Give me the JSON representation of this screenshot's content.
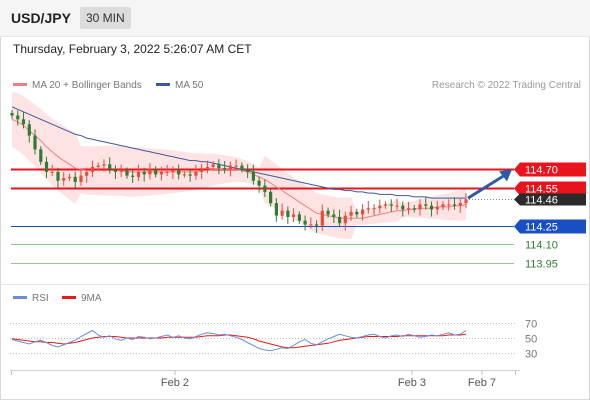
{
  "header": {
    "symbol": "USD/JPY",
    "timeframe": "30 MIN"
  },
  "datetime": "Thursday, February 3, 2022 5:26:07 AM CET",
  "legend": {
    "ma20": "MA 20 + Bollinger Bands",
    "ma50": "MA 50",
    "rsi": "RSI",
    "ma9": "9MA"
  },
  "copyright": "Research © 2022 Trading Central",
  "colors": {
    "ma20": "#f08080",
    "ma50": "#3c5a9a",
    "bollinger_fill": "#fde0e0",
    "bull": "#e74c3c",
    "bear": "#2e7d32",
    "resistance": "#e8131d",
    "support_blue": "#1a4fc4",
    "support_green": "#8fc98f",
    "arrow": "#2b5aa8",
    "rsi": "#6a8fd6",
    "rsi_ma": "#e21b1b",
    "last_price_bg": "#2b2b2b"
  },
  "chart_data": [
    {
      "type": "line",
      "title": "USD/JPY 30 MIN",
      "x_ticks": [
        "Feb 2",
        "Feb 3",
        "Feb 7"
      ],
      "ylim": [
        113.8,
        115.35
      ],
      "levels": [
        {
          "value": 114.7,
          "label": "114.70",
          "kind": "resistance"
        },
        {
          "value": 114.55,
          "label": "114.55",
          "kind": "resistance"
        },
        {
          "value": 114.25,
          "label": "114.25",
          "kind": "support"
        },
        {
          "value": 114.1,
          "label": "114.10",
          "kind": "support"
        },
        {
          "value": 113.95,
          "label": "113.95",
          "kind": "support"
        }
      ],
      "last_price": {
        "value": 114.46,
        "label": "114.46"
      },
      "forecast_arrow": {
        "from": 114.47,
        "to": 114.7,
        "direction": "up"
      },
      "close": [
        115.13,
        115.1,
        115.06,
        114.97,
        114.86,
        114.76,
        114.68,
        114.68,
        114.61,
        114.63,
        114.64,
        114.6,
        114.65,
        114.68,
        114.72,
        114.73,
        114.74,
        114.7,
        114.68,
        114.69,
        114.65,
        114.64,
        114.68,
        114.66,
        114.7,
        114.66,
        114.68,
        114.68,
        114.69,
        114.66,
        114.66,
        114.65,
        114.68,
        114.71,
        114.72,
        114.74,
        114.71,
        114.7,
        114.73,
        114.73,
        114.7,
        114.68,
        114.61,
        114.57,
        114.52,
        114.43,
        114.33,
        114.37,
        114.32,
        114.34,
        114.29,
        114.26,
        114.26,
        114.25,
        114.37,
        114.34,
        114.32,
        114.27,
        114.33,
        114.36,
        114.34,
        114.38,
        114.39,
        114.39,
        114.41,
        114.42,
        114.41,
        114.41,
        114.38,
        114.39,
        114.38,
        114.42,
        114.41,
        114.38,
        114.4,
        114.42,
        114.42,
        114.41,
        114.43,
        114.46
      ],
      "ma20": [
        115.1,
        115.08,
        115.05,
        115.01,
        114.97,
        114.93,
        114.88,
        114.84,
        114.8,
        114.77,
        114.74,
        114.71,
        114.7,
        114.69,
        114.69,
        114.69,
        114.69,
        114.69,
        114.69,
        114.69,
        114.68,
        114.68,
        114.68,
        114.68,
        114.68,
        114.68,
        114.68,
        114.68,
        114.68,
        114.68,
        114.68,
        114.68,
        114.68,
        114.69,
        114.69,
        114.7,
        114.7,
        114.7,
        114.7,
        114.7,
        114.69,
        114.68,
        114.66,
        114.64,
        114.62,
        114.59,
        114.56,
        114.53,
        114.5,
        114.47,
        114.44,
        114.41,
        114.38,
        114.35,
        114.34,
        114.33,
        114.32,
        114.31,
        114.31,
        114.31,
        114.31,
        114.31,
        114.32,
        114.33,
        114.34,
        114.35,
        114.36,
        114.37,
        114.37,
        114.38,
        114.38,
        114.39,
        114.39,
        114.39,
        114.4,
        114.4,
        114.4,
        114.41,
        114.41,
        114.42
      ],
      "ma50": [
        115.2,
        115.18,
        115.16,
        115.14,
        115.12,
        115.1,
        115.08,
        115.06,
        115.04,
        115.02,
        115,
        114.98,
        114.97,
        114.95,
        114.94,
        114.93,
        114.92,
        114.91,
        114.9,
        114.89,
        114.88,
        114.87,
        114.86,
        114.85,
        114.84,
        114.83,
        114.82,
        114.81,
        114.8,
        114.79,
        114.78,
        114.77,
        114.77,
        114.76,
        114.76,
        114.75,
        114.74,
        114.73,
        114.72,
        114.71,
        114.7,
        114.69,
        114.68,
        114.67,
        114.66,
        114.65,
        114.64,
        114.63,
        114.62,
        114.61,
        114.6,
        114.59,
        114.58,
        114.57,
        114.56,
        114.55,
        114.54,
        114.54,
        114.53,
        114.53,
        114.52,
        114.52,
        114.51,
        114.51,
        114.5,
        114.5,
        114.5,
        114.49,
        114.49,
        114.49,
        114.48,
        114.48,
        114.48,
        114.47,
        114.47,
        114.47,
        114.47,
        114.47,
        114.47,
        114.47
      ]
    },
    {
      "type": "line",
      "title": "RSI",
      "y_ticks": [
        "70",
        "50",
        "30"
      ],
      "ylim": [
        10,
        90
      ],
      "rsi": [
        48,
        46,
        44,
        42,
        45,
        47,
        44,
        40,
        38,
        41,
        44,
        47,
        52,
        56,
        60,
        54,
        51,
        53,
        49,
        47,
        50,
        48,
        52,
        51,
        49,
        50,
        52,
        54,
        51,
        53,
        50,
        49,
        52,
        55,
        57,
        56,
        54,
        55,
        53,
        51,
        48,
        44,
        40,
        36,
        34,
        33,
        35,
        37,
        36,
        40,
        45,
        48,
        43,
        41,
        45,
        49,
        52,
        55,
        53,
        51,
        50,
        52,
        54,
        55,
        52,
        50,
        53,
        54,
        52,
        55,
        53,
        51,
        52,
        54,
        53,
        55,
        57,
        54,
        55,
        60
      ],
      "ma9": [
        49,
        48,
        47,
        46,
        45,
        45,
        44,
        44,
        43,
        42,
        43,
        44,
        46,
        48,
        50,
        51,
        52,
        52,
        52,
        51,
        50,
        50,
        50,
        50,
        50,
        50,
        50,
        51,
        51,
        51,
        51,
        51,
        51,
        52,
        53,
        53,
        53,
        54,
        54,
        53,
        52,
        51,
        49,
        46,
        44,
        42,
        40,
        38,
        37,
        37,
        38,
        39,
        40,
        41,
        42,
        43,
        45,
        47,
        48,
        49,
        50,
        51,
        52,
        52,
        52,
        52,
        52,
        52,
        53,
        53,
        53,
        53,
        53,
        53,
        53,
        53,
        54,
        54,
        54,
        55
      ]
    }
  ]
}
